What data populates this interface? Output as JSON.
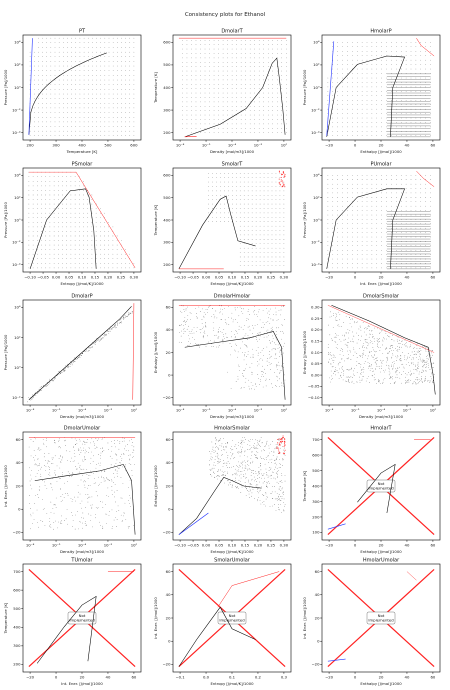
{
  "suptitle": "Consistency plots for Ethanol",
  "not_implemented_label": "Not\nImplemented",
  "colors": {
    "points": "#222222",
    "two_phase": "#000000",
    "blue": "#2233ff",
    "red": "#ff2222",
    "frame": "#000000"
  },
  "chart_data": [
    {
      "type": "scatter",
      "title": "PT",
      "xlabel": "Temperature [K]",
      "ylabel": "Pressure [Pa]/1000",
      "xticks": [
        "200",
        "300",
        "400",
        "500",
        "600"
      ],
      "yticks": [
        "10⁻⁴",
        "10⁻²",
        "10⁰",
        "10²",
        "10⁴"
      ],
      "implemented": true
    },
    {
      "type": "scatter",
      "title": "DmolarT",
      "xlabel": "Density [mol/m3]/1000",
      "ylabel": "Temperature [K]",
      "xticks": [
        "10⁻⁸",
        "10⁻⁶",
        "10⁻⁴",
        "10⁻²",
        "10⁰"
      ],
      "yticks": [
        "200",
        "300",
        "400",
        "500",
        "600"
      ],
      "implemented": true
    },
    {
      "type": "scatter",
      "title": "HmolarP",
      "xlabel": "Enthalpy [J/mol]/1000",
      "ylabel": "Pressure [Pa]/1000",
      "xticks": [
        "−20",
        "0",
        "20",
        "40",
        "60"
      ],
      "yticks": [
        "10⁻⁴",
        "10⁻²",
        "10⁰",
        "10²",
        "10⁴"
      ],
      "implemented": true
    },
    {
      "type": "scatter",
      "title": "PSmolar",
      "xlabel": "Entropy [J/mol/K]/1000",
      "ylabel": "Pressure [Pa]/1000",
      "xticks": [
        "−0.10",
        "−0.05",
        "0.00",
        "0.05",
        "0.10",
        "0.15",
        "0.20",
        "0.25",
        "0.30"
      ],
      "yticks": [
        "10⁻⁴",
        "10⁻²",
        "10⁰",
        "10²",
        "10⁴"
      ],
      "implemented": true
    },
    {
      "type": "scatter",
      "title": "SmolarT",
      "xlabel": "Entropy [J/mol/K]/1000",
      "ylabel": "Temperature [K]",
      "xticks": [
        "−0.10",
        "−0.05",
        "0.00",
        "0.05",
        "0.10",
        "0.15",
        "0.20",
        "0.25",
        "0.30"
      ],
      "yticks": [
        "200",
        "300",
        "400",
        "500",
        "600"
      ],
      "implemented": true
    },
    {
      "type": "scatter",
      "title": "PUmolar",
      "xlabel": "Int. Ener. [J/mol]/1000",
      "ylabel": "Pressure [Pa]/1000",
      "xticks": [
        "−20",
        "0",
        "20",
        "40",
        "60"
      ],
      "yticks": [
        "10⁻⁴",
        "10⁻²",
        "10⁰",
        "10²",
        "10⁴"
      ],
      "implemented": true
    },
    {
      "type": "scatter",
      "title": "DmolarP",
      "xlabel": "Density [mol/m3]/1000",
      "ylabel": "Pressure [Pa]/1000",
      "xticks": [
        "10⁻⁸",
        "10⁻⁶",
        "10⁻⁴",
        "10⁻²",
        "10⁰"
      ],
      "yticks": [
        "10⁻²",
        "10⁰",
        "10²",
        "10⁴"
      ],
      "implemented": true
    },
    {
      "type": "scatter",
      "title": "DmolarHmolar",
      "xlabel": "Density [mol/m3]/1000",
      "ylabel": "Enthalpy [J/mol]/1000",
      "xticks": [
        "10⁻⁸",
        "10⁻⁶",
        "10⁻⁴",
        "10⁻²",
        "10⁰"
      ],
      "yticks": [
        "−20",
        "0",
        "20",
        "40",
        "60"
      ],
      "implemented": true
    },
    {
      "type": "scatter",
      "title": "DmolarSmolar",
      "xlabel": "Density [mol/m3]/1000",
      "ylabel": "Entropy [J/mol/K]/1000",
      "xticks": [
        "10⁻⁸",
        "10⁻⁶",
        "10⁻⁴",
        "10⁻²",
        "10⁰"
      ],
      "yticks": [
        "−0.10",
        "−0.05",
        "0.00",
        "0.05",
        "0.10",
        "0.15",
        "0.20",
        "0.25",
        "0.30"
      ],
      "implemented": true
    },
    {
      "type": "scatter",
      "title": "DmolarUmolar",
      "xlabel": "Density [mol/m3]/1000",
      "ylabel": "Int. Ener. [J/mol]/1000",
      "xticks": [
        "10⁻⁸",
        "10⁻⁶",
        "10⁻⁴",
        "10⁻²",
        "10⁰"
      ],
      "yticks": [
        "−20",
        "0",
        "20",
        "40",
        "60"
      ],
      "implemented": true
    },
    {
      "type": "scatter",
      "title": "HmolarSmolar",
      "xlabel": "Entropy [J/mol/K]/1000",
      "ylabel": "Enthalpy [J/mol]/1000",
      "xticks": [
        "−0.10",
        "−0.05",
        "0.00",
        "0.05",
        "0.10",
        "0.15",
        "0.20",
        "0.25",
        "0.30"
      ],
      "yticks": [
        "−20",
        "0",
        "20",
        "40",
        "60"
      ],
      "implemented": true
    },
    {
      "type": "scatter",
      "title": "HmolarT",
      "xlabel": "Enthalpy [J/mol]/1000",
      "ylabel": "Temperature [K]",
      "xticks": [
        "−20",
        "0",
        "20",
        "40",
        "60"
      ],
      "yticks": [
        "100",
        "200",
        "300",
        "400",
        "500",
        "600",
        "700"
      ],
      "implemented": false
    },
    {
      "type": "scatter",
      "title": "TUmolar",
      "xlabel": "Int. Ener. [J/mol]/1000",
      "ylabel": "Temperature [K]",
      "xticks": [
        "−20",
        "0",
        "20",
        "40",
        "60"
      ],
      "yticks": [
        "200",
        "300",
        "400",
        "500",
        "600",
        "700"
      ],
      "implemented": false
    },
    {
      "type": "scatter",
      "title": "SmolarUmolar",
      "xlabel": "Entropy [J/mol/K]/1000",
      "ylabel": "Int. Ener. [J/mol]/1000",
      "xticks": [
        "−0.1",
        "0.0",
        "0.1",
        "0.2",
        "0.3"
      ],
      "yticks": [
        "−20",
        "0",
        "20",
        "40",
        "60"
      ],
      "implemented": false
    },
    {
      "type": "scatter",
      "title": "HmolarUmolar",
      "xlabel": "Enthalpy [J/mol]/1000",
      "ylabel": "Int. Ener. [J/mol]/1000",
      "xticks": [
        "−20",
        "0",
        "20",
        "40",
        "60"
      ],
      "yticks": [
        "−20",
        "0",
        "20",
        "40",
        "60"
      ],
      "implemented": false
    }
  ]
}
